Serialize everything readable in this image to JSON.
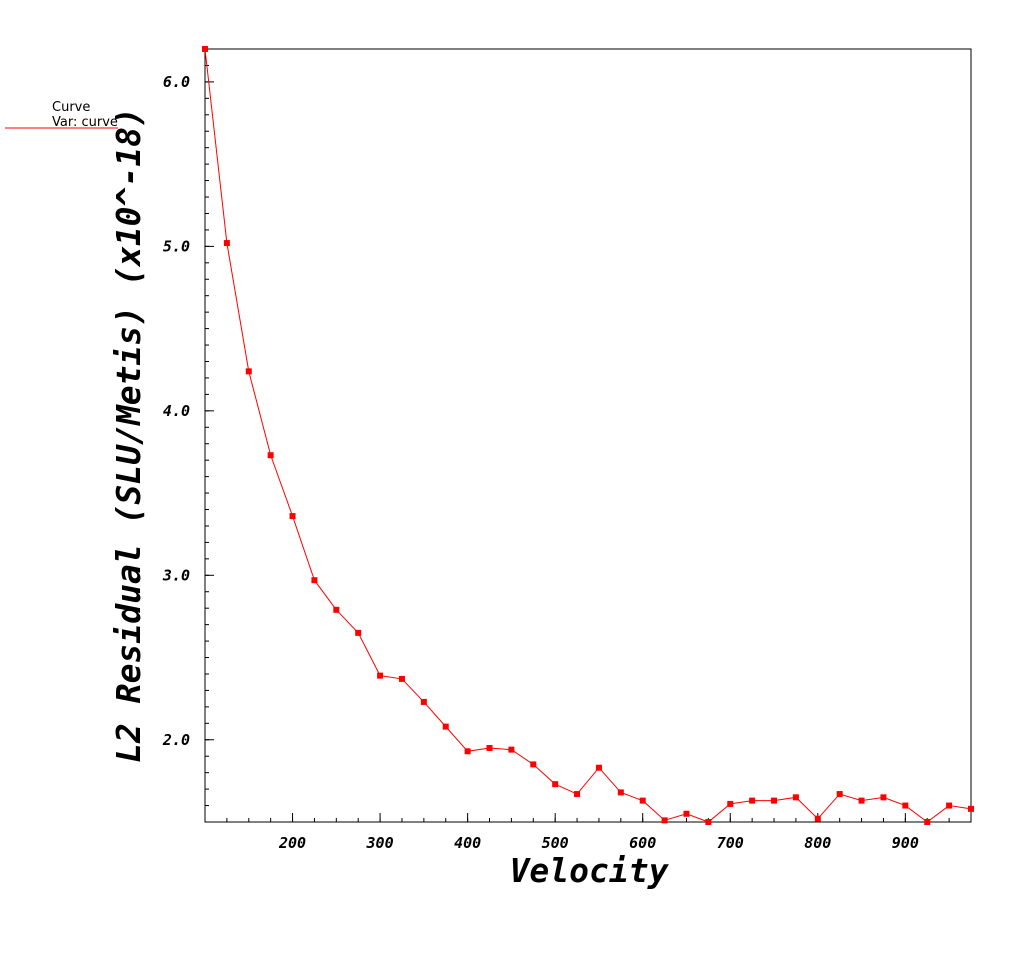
{
  "chart_data": {
    "type": "line",
    "xlabel": "Velocity",
    "ylabel": "L2 Residual (SLU/Metis) (x10^-18)",
    "xlim": [
      100,
      975
    ],
    "ylim": [
      1.5,
      6.2
    ],
    "x_ticks": [
      200,
      300,
      400,
      500,
      600,
      700,
      800,
      900
    ],
    "y_ticks": [
      2.0,
      3.0,
      4.0,
      5.0,
      6.0
    ],
    "y_tick_labels": [
      "2.0",
      "3.0",
      "4.0",
      "5.0",
      "6.0"
    ],
    "grid": false,
    "legend": {
      "title": "Curve",
      "entry": "Var: curve",
      "position": "top-left outside"
    },
    "series": [
      {
        "color": "#ff0000",
        "x": [
          100,
          125,
          150,
          175,
          200,
          225,
          250,
          275,
          300,
          325,
          350,
          375,
          400,
          425,
          450,
          475,
          500,
          525,
          550,
          575,
          600,
          625,
          650,
          675,
          700,
          725,
          750,
          775,
          800,
          825,
          850,
          875,
          900,
          925,
          950,
          975
        ],
        "values": [
          6.2,
          5.02,
          4.24,
          3.73,
          3.36,
          2.97,
          2.79,
          2.65,
          2.39,
          2.37,
          2.23,
          2.08,
          1.93,
          1.95,
          1.94,
          1.85,
          1.73,
          1.67,
          1.83,
          1.68,
          1.63,
          1.51,
          1.55,
          1.5,
          1.61,
          1.63,
          1.63,
          1.65,
          1.52,
          1.67,
          1.63,
          1.65,
          1.6,
          1.5,
          1.6,
          1.58
        ]
      }
    ]
  }
}
